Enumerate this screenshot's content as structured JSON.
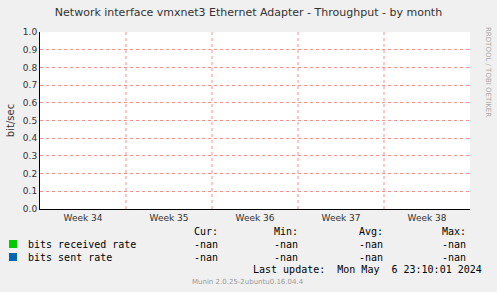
{
  "chart_data": {
    "type": "line",
    "title": "Network interface vmxnet3 Ethernet Adapter - Throughput - by month",
    "y_label": "bit/sec",
    "categories": [
      "Week 34",
      "Week 35",
      "Week 36",
      "Week 37",
      "Week 38"
    ],
    "series": [
      {
        "name": "bits received rate",
        "color": "#00cc00",
        "values": [
          null,
          null,
          null,
          null,
          null
        ],
        "stats": [
          "-nan",
          "-nan",
          "-nan",
          "-nan"
        ]
      },
      {
        "name": "bits sent rate",
        "color": "#0066b3",
        "values": [
          null,
          null,
          null,
          null,
          null
        ],
        "stats": [
          "-nan",
          "-nan",
          "-nan",
          "-nan"
        ]
      }
    ],
    "stat_labels": [
      "Cur:",
      "Min:",
      "Avg:",
      "Max:"
    ],
    "ylim": [
      0,
      1
    ],
    "yticks": [
      {
        "value": 0,
        "label": "0.0"
      },
      {
        "value": 0.1,
        "label": "0.1"
      },
      {
        "value": 0.2,
        "label": "0.2"
      },
      {
        "value": 0.3,
        "label": "0.3"
      },
      {
        "value": 0.4,
        "label": "0.4"
      },
      {
        "value": 0.5,
        "label": "0.5"
      },
      {
        "value": 0.6,
        "label": "0.6"
      },
      {
        "value": 0.7,
        "label": "0.7"
      },
      {
        "value": 0.8,
        "label": "0.8"
      },
      {
        "value": 0.9,
        "label": "0.9"
      },
      {
        "value": 1,
        "label": "1.0"
      }
    ],
    "grid": true,
    "last_update": "Last update:  Mon May  6 23:10:01 2024",
    "footer": "Munin 2.0.25-2ubuntu0.16.04.4",
    "watermark": "RRDTOOL / TOBI OETIKER"
  }
}
